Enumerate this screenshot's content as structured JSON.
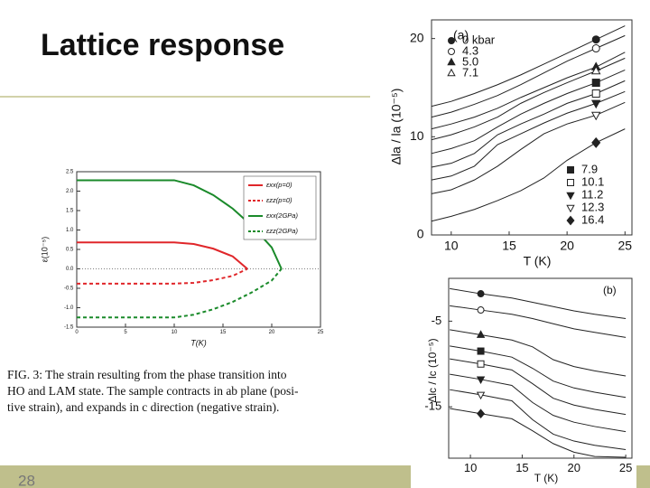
{
  "slide": {
    "title": "Lattice response",
    "page_number": "28",
    "caption": [
      "FIG. 3:  The strain resulting from the phase transition into",
      "HO and LAM state.  The sample contracts in ab plane (posi-",
      "tive strain), and expands in c direction (negative strain)."
    ]
  },
  "chart_data": [
    {
      "type": "line",
      "xlabel": "T(K)",
      "ylabel": "ε(10⁻⁵)",
      "xlim": [
        0,
        25
      ],
      "ylim": [
        -1.5,
        2.5
      ],
      "xticks": [
        0,
        5,
        10,
        15,
        20,
        25
      ],
      "yticks": [
        -1.5,
        {
          "value": -1,
          "label": "-1.0"
        },
        -0.5,
        {
          "value": 0,
          "label": "0.0"
        },
        0.5,
        {
          "value": 1,
          "label": "1.0"
        },
        1.5,
        {
          "value": 2,
          "label": "2.0"
        },
        2.5
      ],
      "zero_line": true,
      "legend": "upper right",
      "series": [
        {
          "name": "εxx(p=0)",
          "color": "#e0262a",
          "dash": false,
          "x": [
            0,
            10,
            12,
            14,
            16,
            17.5
          ],
          "values": [
            0.68,
            0.68,
            0.64,
            0.52,
            0.32,
            0
          ]
        },
        {
          "name": "εzz(p=0)",
          "color": "#e0262a",
          "dash": true,
          "x": [
            0,
            10,
            12,
            14,
            16,
            17.5
          ],
          "values": [
            -0.38,
            -0.38,
            -0.36,
            -0.29,
            -0.18,
            0
          ]
        },
        {
          "name": "εxx(2GPa)",
          "color": "#1a8a2a",
          "dash": false,
          "x": [
            0,
            10,
            12,
            14,
            16,
            18,
            20,
            21
          ],
          "values": [
            2.28,
            2.28,
            2.15,
            1.9,
            1.55,
            1.1,
            0.55,
            0
          ]
        },
        {
          "name": "εzz(2GPa)",
          "color": "#1a8a2a",
          "dash": true,
          "x": [
            0,
            10,
            12,
            14,
            16,
            18,
            20,
            21
          ],
          "values": [
            -1.25,
            -1.25,
            -1.18,
            -1.04,
            -0.85,
            -0.6,
            -0.3,
            0
          ]
        }
      ]
    },
    {
      "type": "line",
      "panel": "(a)",
      "xlabel": "T (K)",
      "ylabel": "Δla / la (10⁻⁵)",
      "xlim": [
        8.3,
        25.6
      ],
      "ylim": [
        0,
        21.9
      ],
      "xticks": [
        10,
        15,
        20,
        25
      ],
      "yticks": [
        0,
        10,
        20
      ],
      "series": [
        {
          "name": "0 kbar",
          "color": "#222222",
          "marker": "circle",
          "x": [
            8.3,
            10,
            12,
            14,
            16,
            18,
            20,
            22.5,
            25
          ],
          "values": [
            13.1,
            13.6,
            14.4,
            15.3,
            16.3,
            17.4,
            18.5,
            19.9,
            21.3
          ]
        },
        {
          "name": "4.3",
          "color": "#222222",
          "marker": "open-circle",
          "x": [
            8.3,
            10,
            12,
            14,
            16,
            18,
            20,
            22.5,
            25
          ],
          "values": [
            12.0,
            12.5,
            13.3,
            14.2,
            15.3,
            16.5,
            17.7,
            19.0,
            20.3
          ]
        },
        {
          "name": "5.0",
          "color": "#222222",
          "marker": "triangle",
          "x": [
            8.3,
            10,
            12,
            14,
            16,
            18,
            20,
            22.5,
            25
          ],
          "values": [
            10.8,
            11.3,
            12.0,
            12.9,
            14.0,
            15.0,
            16.0,
            17.1,
            18.6
          ]
        },
        {
          "name": "7.1",
          "color": "#222222",
          "marker": "open-triangle",
          "x": [
            8.3,
            10,
            12,
            14,
            16,
            18,
            20,
            22.5,
            25
          ],
          "values": [
            9.7,
            10.2,
            11.0,
            12.0,
            13.4,
            14.5,
            15.5,
            16.7,
            18.0
          ]
        },
        {
          "name": "7.9",
          "color": "#222222",
          "marker": "square",
          "x": [
            8.3,
            10,
            12,
            14,
            16,
            18,
            20,
            22.5,
            25
          ],
          "values": [
            8.3,
            8.8,
            9.6,
            11.0,
            12.3,
            13.4,
            14.4,
            15.5,
            16.8
          ]
        },
        {
          "name": "10.1",
          "color": "#222222",
          "marker": "open-square",
          "x": [
            8.3,
            10,
            12,
            14,
            16,
            18,
            20,
            22.5,
            25
          ],
          "values": [
            6.9,
            7.3,
            8.3,
            10.2,
            11.3,
            12.3,
            13.4,
            14.4,
            15.7
          ]
        },
        {
          "name": "11.2",
          "color": "#222222",
          "marker": "down-triangle",
          "x": [
            8.3,
            10,
            12,
            14,
            16,
            18,
            20,
            22.5,
            25
          ],
          "values": [
            5.6,
            6.0,
            7.0,
            9.2,
            10.3,
            11.4,
            12.4,
            13.4,
            14.6
          ]
        },
        {
          "name": "12.3",
          "color": "#222222",
          "marker": "open-down-triangle",
          "x": [
            8.3,
            10,
            12,
            14,
            16,
            18,
            20,
            22.5,
            25
          ],
          "values": [
            4.2,
            4.6,
            5.6,
            7.0,
            8.7,
            10.3,
            11.3,
            12.2,
            13.5
          ]
        },
        {
          "name": "16.4",
          "color": "#222222",
          "marker": "diamond",
          "x": [
            8.3,
            10,
            12,
            14,
            16,
            18,
            20,
            22.5,
            25
          ],
          "values": [
            1.4,
            1.9,
            2.6,
            3.5,
            4.5,
            5.8,
            7.6,
            9.4,
            10.8
          ]
        }
      ]
    },
    {
      "type": "line",
      "panel": "(b)",
      "xlabel": "T (K)",
      "ylabel": "Δlc / lc (10⁻⁵)",
      "xlim": [
        7.9,
        25.6
      ],
      "ylim": [
        -21,
        0
      ],
      "xticks": [
        10,
        15,
        20,
        25
      ],
      "yticks": [
        -5,
        -15
      ],
      "series": [
        {
          "color": "#222222",
          "marker": "circle",
          "x": [
            8,
            11,
            14,
            16,
            18,
            20,
            22,
            25
          ],
          "values": [
            -1.2,
            -1.8,
            -2.3,
            -2.8,
            -3.3,
            -3.8,
            -4.2,
            -4.7
          ]
        },
        {
          "color": "#222222",
          "marker": "open-circle",
          "x": [
            8,
            11,
            14,
            16,
            18,
            20,
            22,
            25
          ],
          "values": [
            -3.2,
            -3.7,
            -4.2,
            -4.7,
            -5.3,
            -5.9,
            -6.3,
            -6.9
          ]
        },
        {
          "color": "#222222",
          "marker": "triangle",
          "x": [
            8,
            11,
            14,
            16,
            18,
            20,
            22,
            25
          ],
          "values": [
            -6.0,
            -6.6,
            -7.2,
            -8.0,
            -9.5,
            -10.3,
            -10.8,
            -11.4
          ]
        },
        {
          "color": "#222222",
          "marker": "square",
          "x": [
            8,
            11,
            14,
            16,
            18,
            20,
            22,
            25
          ],
          "values": [
            -7.9,
            -8.5,
            -9.2,
            -10.5,
            -12.0,
            -12.8,
            -13.3,
            -13.9
          ]
        },
        {
          "color": "#222222",
          "marker": "open-square",
          "x": [
            8,
            11,
            14,
            16,
            18,
            20,
            22,
            25
          ],
          "values": [
            -9.4,
            -10.0,
            -10.7,
            -12.3,
            -14.0,
            -14.8,
            -15.3,
            -15.9
          ]
        },
        {
          "color": "#222222",
          "marker": "down-triangle",
          "x": [
            8,
            11,
            14,
            16,
            18,
            20,
            22,
            25
          ],
          "values": [
            -11.2,
            -11.8,
            -12.5,
            -14.5,
            -16.0,
            -16.8,
            -17.3,
            -17.9
          ]
        },
        {
          "color": "#222222",
          "marker": "open-down-triangle",
          "x": [
            8,
            11,
            14,
            16,
            18,
            20,
            22,
            25
          ],
          "values": [
            -13.0,
            -13.6,
            -14.3,
            -16.5,
            -18.2,
            -19.0,
            -19.5,
            -20.0
          ]
        },
        {
          "color": "#222222",
          "marker": "diamond",
          "x": [
            8,
            11,
            14,
            16,
            18,
            20,
            22,
            25
          ],
          "values": [
            -15.2,
            -15.8,
            -16.4,
            -17.8,
            -19.3,
            -20.3,
            -20.8,
            -20.9
          ]
        }
      ]
    }
  ]
}
